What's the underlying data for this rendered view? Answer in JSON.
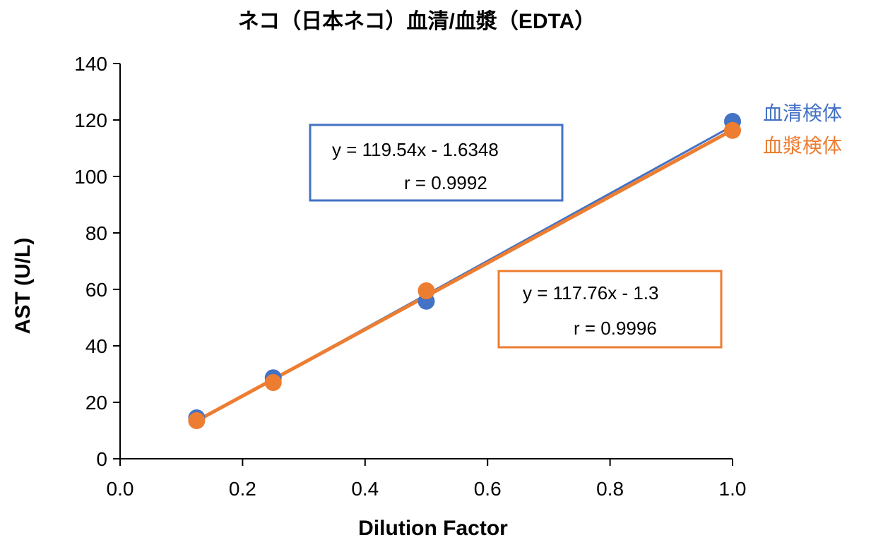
{
  "chart_data": {
    "type": "scatter",
    "title": "ネコ（日本ネコ）血清/血漿（EDTA）",
    "xlabel": "Dilution Factor",
    "ylabel": "AST (U/L)",
    "xlim": [
      0,
      1.0
    ],
    "ylim": [
      0,
      140
    ],
    "xticks": [
      "0.0",
      "0.2",
      "0.4",
      "0.6",
      "0.8",
      "1.0"
    ],
    "yticks": [
      "0",
      "20",
      "40",
      "60",
      "80",
      "100",
      "120",
      "140"
    ],
    "grid": false,
    "legend_placement": "right",
    "series": [
      {
        "name": "血清検体",
        "color": "#4472C4",
        "x": [
          0.125,
          0.25,
          0.5,
          1.0
        ],
        "y": [
          14.5,
          28.7,
          55.8,
          119.5
        ],
        "trendline": {
          "slope": 119.54,
          "intercept": -1.6348
        },
        "equation": "y = 119.54x - 1.6348",
        "r": "r = 0.9992"
      },
      {
        "name": "血漿検体",
        "color": "#ED7D31",
        "x": [
          0.125,
          0.25,
          0.5,
          1.0
        ],
        "y": [
          13.5,
          27.0,
          59.5,
          116.3
        ],
        "trendline": {
          "slope": 117.76,
          "intercept": -1.3
        },
        "equation": "y = 117.76x - 1.3",
        "r": "r = 0.9996"
      }
    ]
  }
}
